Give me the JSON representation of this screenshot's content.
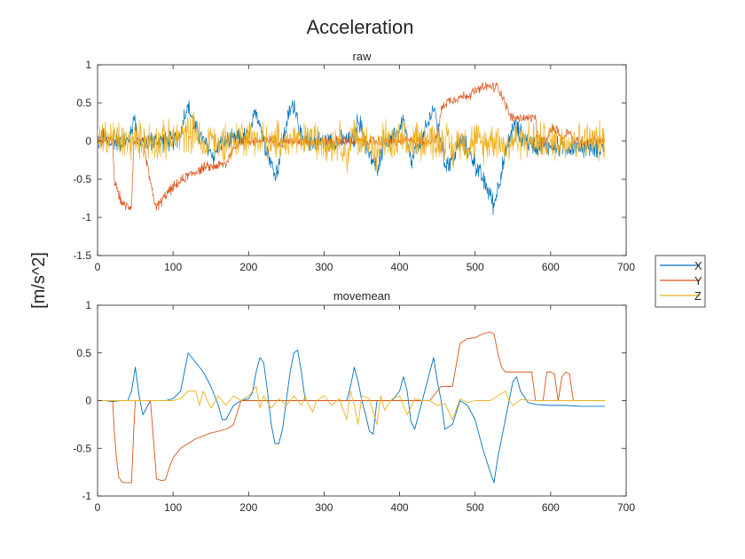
{
  "figure": {
    "title": "Acceleration",
    "ylabel": "[m/s^2]"
  },
  "legend": {
    "placement": "right",
    "items": [
      {
        "label": "X",
        "color": "#0072BD"
      },
      {
        "label": "Y",
        "color": "#D95319"
      },
      {
        "label": "Z",
        "color": "#EDB120"
      }
    ]
  },
  "chart_data": [
    {
      "type": "line",
      "title": "raw",
      "xlim": [
        0,
        700
      ],
      "ylim": [
        -1.5,
        1
      ],
      "xticks": [
        0,
        100,
        200,
        300,
        400,
        500,
        600,
        700
      ],
      "yticks": [
        -1.5,
        -1,
        -0.5,
        0,
        0.5,
        1
      ],
      "grid": false,
      "noisy": true,
      "series": [
        {
          "name": "X",
          "color": "#0072BD",
          "x": [
            0,
            10,
            15,
            20,
            30,
            40,
            45,
            48,
            52,
            55,
            60,
            70,
            80,
            90,
            100,
            110,
            115,
            120,
            125,
            130,
            140,
            150,
            155,
            160,
            170,
            180,
            190,
            200,
            205,
            210,
            215,
            220,
            225,
            230,
            235,
            240,
            245,
            250,
            255,
            260,
            265,
            270,
            275,
            280,
            290,
            300,
            310,
            320,
            330,
            340,
            345,
            350,
            355,
            360,
            370,
            380,
            390,
            400,
            405,
            410,
            415,
            420,
            430,
            440,
            445,
            450,
            455,
            460,
            470,
            480,
            490,
            500,
            510,
            520,
            525,
            530,
            540,
            550,
            560,
            570,
            580,
            590,
            600,
            620,
            640,
            660,
            672
          ],
          "y": [
            0,
            0.05,
            -0.05,
            0,
            0,
            0,
            0.1,
            0.35,
            0.1,
            -0.05,
            0,
            0,
            0,
            0,
            0,
            0.1,
            0.35,
            0.45,
            0.3,
            0.15,
            0,
            -0.15,
            -0.2,
            -0.05,
            0,
            0,
            0.05,
            0.05,
            0.2,
            0.4,
            0.25,
            0,
            -0.1,
            -0.3,
            -0.45,
            -0.3,
            0,
            0.2,
            0.4,
            0.5,
            0.3,
            0,
            0,
            0,
            0,
            0,
            0,
            0,
            0,
            0,
            0.3,
            0.15,
            0,
            -0.2,
            -0.35,
            0,
            0,
            0.15,
            0.3,
            0,
            -0.3,
            -0.15,
            0,
            0.3,
            0.45,
            0.2,
            0,
            -0.3,
            -0.25,
            0,
            -0.1,
            -0.3,
            -0.5,
            -0.7,
            -0.85,
            -0.6,
            -0.2,
            0.2,
            0.1,
            -0.02,
            -0.05,
            -0.06,
            -0.07,
            -0.08,
            -0.08,
            -0.08,
            -0.08
          ]
        },
        {
          "name": "Y",
          "color": "#D95319",
          "x": [
            0,
            20,
            22,
            25,
            28,
            32,
            35,
            45,
            48,
            60,
            75,
            78,
            80,
            95,
            120,
            140,
            170,
            180,
            190,
            200,
            220,
            250,
            280,
            300,
            330,
            350,
            380,
            400,
            420,
            440,
            450,
            455,
            460,
            470,
            490,
            510,
            520,
            525,
            530,
            540,
            545,
            550,
            555,
            560,
            570,
            575,
            580,
            582,
            595,
            600,
            605,
            610,
            615,
            620,
            625,
            630,
            640,
            660,
            672
          ],
          "y": [
            0,
            0,
            -0.5,
            -0.6,
            -0.7,
            -0.8,
            -0.85,
            -0.85,
            0,
            0,
            -0.8,
            -0.85,
            -0.85,
            -0.65,
            -0.45,
            -0.35,
            -0.3,
            -0.1,
            0,
            0,
            0,
            0,
            0,
            0,
            0,
            0,
            0,
            0,
            0,
            0,
            0.05,
            0.4,
            0.5,
            0.55,
            0.6,
            0.7,
            0.72,
            0.7,
            0.72,
            0.5,
            0.35,
            0.3,
            0.3,
            0.3,
            0.3,
            0.3,
            0.3,
            0,
            0,
            0.15,
            0.15,
            0.15,
            0,
            0.1,
            0.15,
            0,
            0,
            0,
            0
          ]
        },
        {
          "name": "Z",
          "color": "#EDB120",
          "x": [
            0,
            20,
            40,
            60,
            80,
            100,
            120,
            130,
            140,
            150,
            160,
            170,
            180,
            190,
            200,
            210,
            215,
            220,
            230,
            240,
            250,
            260,
            270,
            280,
            290,
            300,
            310,
            320,
            330,
            340,
            350,
            360,
            370,
            380,
            390,
            400,
            410,
            420,
            430,
            440,
            450,
            460,
            470,
            480,
            490,
            500,
            510,
            520,
            530,
            540,
            550,
            560,
            580,
            600,
            620,
            640,
            660,
            672
          ],
          "y": [
            0,
            0.05,
            -0.02,
            0.02,
            0,
            0.02,
            0.1,
            0.15,
            -0.15,
            0.1,
            -0.1,
            0.05,
            -0.05,
            0.08,
            0.05,
            0.1,
            -0.08,
            0.05,
            -0.1,
            0.05,
            -0.05,
            0.05,
            -0.05,
            0.05,
            0,
            0.05,
            -0.05,
            0.05,
            -0.2,
            0.1,
            -0.05,
            0.05,
            -0.2,
            0.05,
            -0.1,
            0.05,
            -0.1,
            0.05,
            0,
            0.05,
            -0.05,
            0.05,
            -0.15,
            0.05,
            -0.05,
            0.02,
            -0.05,
            0.02,
            0.05,
            -0.1,
            0.02,
            0.02,
            0.01,
            0,
            0,
            0,
            0,
            0
          ]
        }
      ]
    },
    {
      "type": "line",
      "title": "movemean",
      "xlim": [
        0,
        700
      ],
      "ylim": [
        -1,
        1
      ],
      "xticks": [
        0,
        100,
        200,
        300,
        400,
        500,
        600,
        700
      ],
      "yticks": [
        -1,
        -0.5,
        0,
        0.5,
        1
      ],
      "grid": false,
      "noisy": false,
      "series": [
        {
          "name": "X",
          "color": "#0072BD",
          "x": [
            0,
            10,
            20,
            30,
            40,
            45,
            50,
            55,
            60,
            70,
            80,
            90,
            100,
            110,
            115,
            120,
            125,
            130,
            140,
            150,
            160,
            165,
            170,
            180,
            190,
            200,
            205,
            210,
            215,
            220,
            225,
            230,
            235,
            240,
            245,
            250,
            255,
            260,
            265,
            270,
            275,
            280,
            290,
            300,
            310,
            320,
            330,
            335,
            340,
            345,
            350,
            355,
            360,
            365,
            370,
            380,
            390,
            400,
            405,
            410,
            415,
            420,
            430,
            440,
            445,
            450,
            455,
            460,
            470,
            480,
            490,
            500,
            510,
            520,
            525,
            530,
            540,
            550,
            555,
            560,
            570,
            580,
            600,
            620,
            640,
            660,
            672
          ],
          "y": [
            0,
            0,
            -0.01,
            0,
            0,
            0.1,
            0.35,
            0.05,
            -0.15,
            0,
            0,
            0,
            0.02,
            0.1,
            0.3,
            0.5,
            0.45,
            0.4,
            0.3,
            0.15,
            -0.05,
            -0.2,
            -0.2,
            -0.05,
            0,
            0.02,
            0.08,
            0.3,
            0.45,
            0.4,
            0.1,
            -0.25,
            -0.45,
            -0.45,
            -0.3,
            0,
            0.3,
            0.5,
            0.53,
            0.3,
            0,
            0,
            0,
            0,
            0,
            0,
            0,
            0.15,
            0.35,
            0.2,
            0,
            -0.15,
            -0.32,
            -0.35,
            0,
            0,
            0,
            0.1,
            0.25,
            0.1,
            -0.22,
            -0.3,
            0,
            0.3,
            0.45,
            0.2,
            0,
            -0.3,
            -0.25,
            0,
            -0.05,
            -0.2,
            -0.5,
            -0.75,
            -0.86,
            -0.6,
            -0.2,
            0.2,
            0.25,
            0.1,
            -0.02,
            -0.04,
            -0.05,
            -0.05,
            -0.06,
            -0.06,
            -0.06
          ]
        },
        {
          "name": "Y",
          "color": "#D95319",
          "x": [
            0,
            10,
            20,
            22,
            25,
            28,
            32,
            35,
            45,
            48,
            50,
            60,
            70,
            75,
            78,
            85,
            90,
            95,
            100,
            110,
            120,
            130,
            140,
            150,
            160,
            170,
            175,
            180,
            190,
            200,
            220,
            250,
            280,
            300,
            330,
            350,
            380,
            400,
            420,
            440,
            450,
            455,
            460,
            470,
            480,
            490,
            500,
            510,
            520,
            525,
            530,
            535,
            540,
            545,
            550,
            555,
            560,
            570,
            575,
            580,
            582,
            590,
            595,
            600,
            605,
            610,
            615,
            620,
            625,
            630,
            640,
            660,
            672
          ],
          "y": [
            0,
            0,
            0,
            -0.3,
            -0.6,
            -0.8,
            -0.85,
            -0.86,
            -0.86,
            -0.3,
            0,
            0,
            0,
            -0.5,
            -0.82,
            -0.84,
            -0.83,
            -0.7,
            -0.6,
            -0.5,
            -0.45,
            -0.4,
            -0.37,
            -0.34,
            -0.32,
            -0.3,
            -0.28,
            -0.25,
            0,
            0,
            0,
            0,
            0,
            0,
            0,
            0,
            0,
            0,
            0,
            0,
            0.1,
            0.15,
            0.15,
            0.15,
            0.6,
            0.65,
            0.66,
            0.7,
            0.72,
            0.7,
            0.5,
            0.35,
            0.3,
            0.3,
            0.3,
            0.3,
            0.3,
            0.3,
            0.3,
            0,
            0,
            0,
            0.3,
            0.3,
            0.28,
            0,
            0.25,
            0.3,
            0.28,
            0,
            0,
            0,
            0
          ]
        },
        {
          "name": "Z",
          "color": "#EDB120",
          "x": [
            0,
            20,
            40,
            60,
            80,
            100,
            110,
            120,
            130,
            135,
            140,
            150,
            160,
            170,
            180,
            190,
            200,
            210,
            215,
            220,
            230,
            240,
            250,
            260,
            270,
            275,
            280,
            285,
            290,
            300,
            310,
            320,
            330,
            335,
            340,
            345,
            350,
            360,
            370,
            375,
            380,
            390,
            400,
            410,
            420,
            430,
            440,
            450,
            460,
            470,
            480,
            490,
            500,
            510,
            520,
            530,
            540,
            545,
            550,
            560,
            580,
            600,
            620,
            640,
            660,
            672
          ],
          "y": [
            0,
            0,
            0,
            0,
            0,
            0,
            0.02,
            0.1,
            0.1,
            -0.05,
            0.1,
            -0.08,
            0.05,
            -0.05,
            0.05,
            0,
            0.05,
            0.15,
            -0.08,
            0.05,
            -0.08,
            0.02,
            -0.05,
            0.05,
            -0.05,
            0.05,
            -0.05,
            -0.12,
            0,
            0.05,
            -0.05,
            0.02,
            -0.2,
            0.1,
            -0.05,
            -0.25,
            0.05,
            0.02,
            -0.25,
            0.05,
            -0.1,
            0.02,
            0.05,
            -0.15,
            0.02,
            0,
            0,
            -0.05,
            -0.03,
            -0.2,
            0.02,
            -0.02,
            0,
            0,
            0,
            0.05,
            0.1,
            0,
            -0.05,
            0.01,
            0,
            0,
            0,
            0,
            0,
            0
          ]
        }
      ]
    }
  ]
}
